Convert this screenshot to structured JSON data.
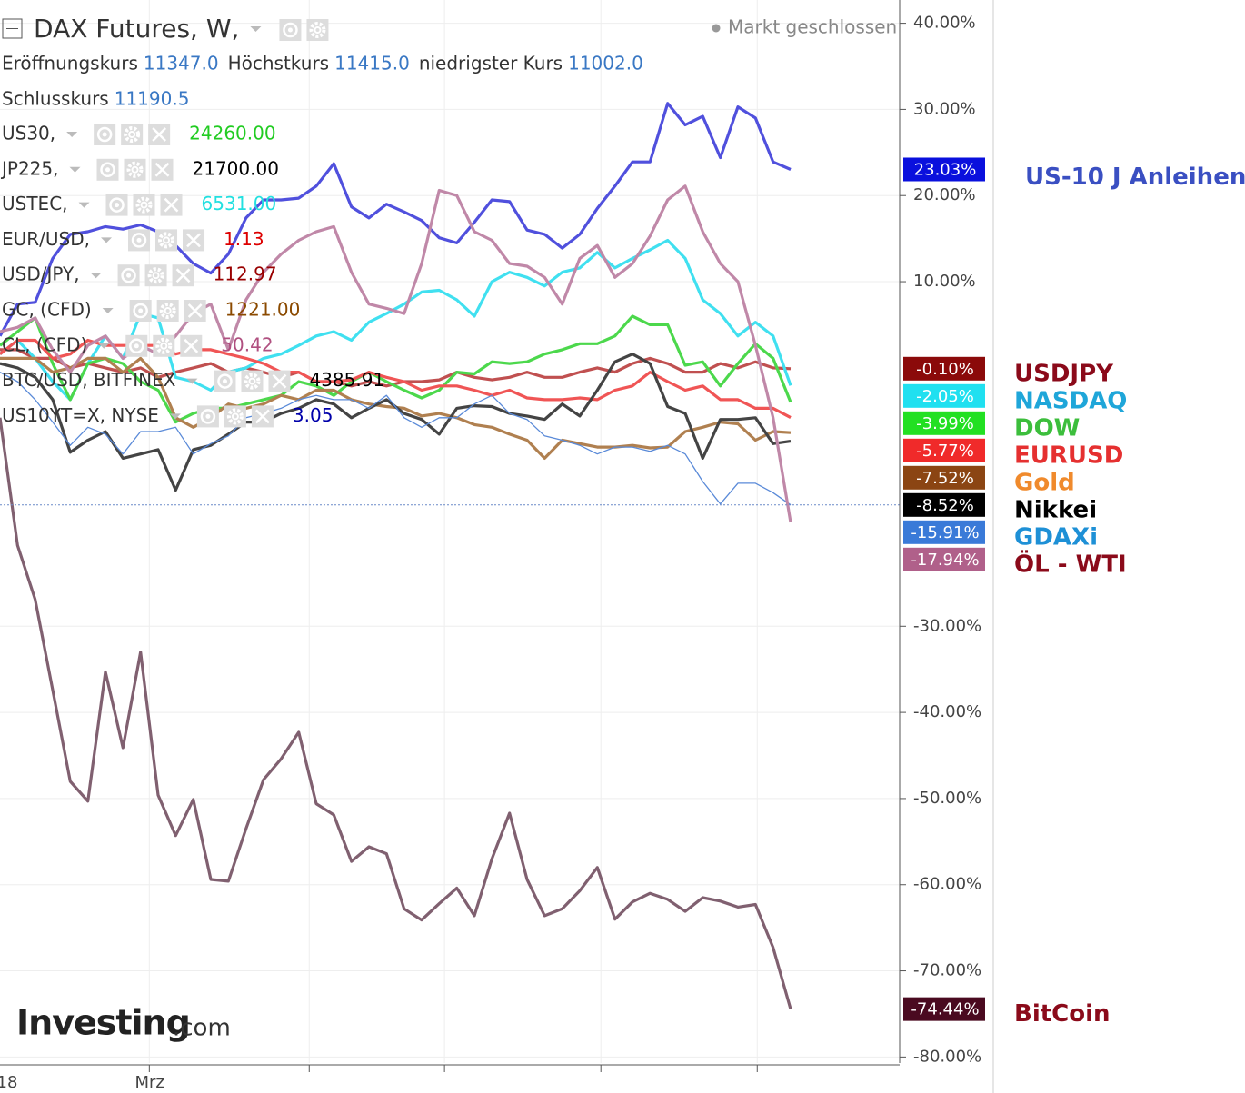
{
  "header": {
    "title": "DAX Futures, W,",
    "status": "Markt geschlossen",
    "ohlc": [
      {
        "label": "Eröffnungskurs",
        "value": "11347.0"
      },
      {
        "label": "Höchstkurs",
        "value": "11415.0"
      },
      {
        "label": "niedrigster Kurs",
        "value": "11002.0"
      },
      {
        "label": "Schlusskurs",
        "value": "11190.5"
      }
    ],
    "symbols": [
      {
        "name": "US30,",
        "value": "24260.00",
        "color": "#22cc22"
      },
      {
        "name": "JP225,",
        "value": "21700.00",
        "color": "#000000"
      },
      {
        "name": "USTEC,",
        "value": "6531.00",
        "color": "#22e0e0"
      },
      {
        "name": "EUR/USD,",
        "value": "1.13",
        "color": "#dd0000"
      },
      {
        "name": "USD/JPY,",
        "value": "112.97",
        "color": "#990000"
      },
      {
        "name": "GC, (CFD)",
        "value": "1221.00",
        "color": "#8b4a00"
      },
      {
        "name": "CL, (CFD)",
        "value": "50.42",
        "color": "#b05080"
      },
      {
        "name": "BTC/USD, BITFINEX",
        "value": "4385.91",
        "color": "#000000"
      },
      {
        "name": "US10YT=X, NYSE",
        "value": "3.05",
        "color": "#0000aa"
      }
    ]
  },
  "watermark": {
    "brand": "Investing",
    "suffix": ".com"
  },
  "chart_data": {
    "type": "line",
    "categories": [
      "18",
      null,
      null,
      null,
      null,
      null,
      null,
      null,
      "Mrz",
      null,
      null,
      null,
      null,
      null,
      null,
      null,
      null,
      null,
      null,
      null,
      null,
      null,
      null,
      null,
      null,
      null,
      null,
      null,
      null,
      null,
      null,
      null,
      null,
      null,
      null,
      null,
      null,
      null,
      null,
      null,
      null,
      null,
      null,
      null,
      null,
      null
    ],
    "ylim": [
      -80.7,
      42.7
    ],
    "yticks": [
      {
        "value": 40,
        "label": "40.00%"
      },
      {
        "value": 30,
        "label": "30.00%"
      },
      {
        "value": 20,
        "label": "20.00%"
      },
      {
        "value": 10,
        "label": "10.00%"
      },
      {
        "value": -30,
        "label": "-30.00%"
      },
      {
        "value": -40,
        "label": "-40.00%"
      },
      {
        "value": -50,
        "label": "-50.00%"
      },
      {
        "value": -60,
        "label": "-60.00%"
      },
      {
        "value": -70,
        "label": "-70.00%"
      },
      {
        "value": -80,
        "label": "-80.00%"
      }
    ],
    "grid": true,
    "series": [
      {
        "name": "US-10 J Anleihen",
        "color": "#5050dd",
        "label_color": "#0a10dd",
        "name_color": "#3a4fc2",
        "values": [
          3.7,
          7.4,
          7.6,
          12.7,
          15.5,
          15.8,
          16.4,
          16.1,
          16.6,
          15.8,
          14.2,
          12.1,
          11.0,
          13.2,
          17.4,
          19.5,
          19.5,
          19.7,
          21.1,
          23.7,
          18.7,
          17.4,
          19.0,
          18.1,
          17.1,
          15.1,
          14.5,
          16.9,
          19.5,
          19.3,
          16.0,
          15.5,
          13.9,
          15.5,
          18.5,
          21.1,
          23.9,
          23.9,
          30.7,
          28.2,
          29.2,
          24.4,
          30.3,
          29.0,
          23.9,
          23.03
        ],
        "value_labels": [
          null,
          null,
          null,
          null,
          null,
          null,
          null,
          null,
          null,
          null,
          null,
          null,
          null,
          null,
          null,
          null,
          null,
          null,
          null,
          null,
          null,
          null,
          null,
          null,
          null,
          null,
          null,
          null,
          null,
          null,
          null,
          null,
          null,
          null,
          null,
          null,
          null,
          null,
          null,
          null,
          null,
          null,
          null,
          null,
          null,
          "23.03%"
        ]
      },
      {
        "name": "USDJPY",
        "color": "#c05050",
        "label_color": "#8b0a0a",
        "name_color": "#8b0a1a",
        "values": [
          2.1,
          2.1,
          1.1,
          1.1,
          0,
          0.5,
          0,
          -0.5,
          0,
          -1.1,
          -0.5,
          0,
          0.5,
          -0.5,
          0,
          -0.5,
          -1.1,
          -0.5,
          -1.6,
          -1.6,
          -2.1,
          -1.6,
          -2.1,
          -1.6,
          -1.6,
          -1.4,
          -0.5,
          -1.1,
          -1.4,
          -1.1,
          -0.5,
          -1.1,
          -1.1,
          -0.5,
          0,
          -0.5,
          0.5,
          1.1,
          0.5,
          -0.5,
          -0.5,
          0.5,
          0,
          0.7,
          0,
          -0.1
        ],
        "value_labels": [
          null,
          null,
          null,
          null,
          null,
          null,
          null,
          null,
          null,
          null,
          null,
          null,
          null,
          null,
          null,
          null,
          null,
          null,
          null,
          null,
          null,
          null,
          null,
          null,
          null,
          null,
          null,
          null,
          null,
          null,
          null,
          null,
          null,
          null,
          null,
          null,
          null,
          null,
          null,
          null,
          null,
          null,
          null,
          null,
          null,
          "-0.10%"
        ]
      },
      {
        "name": "NASDAQ",
        "color": "#40e0f0",
        "label_color": "#20e0f0",
        "name_color": "#1fa6d9",
        "values": [
          1.6,
          3.2,
          1.1,
          -1.6,
          -3.7,
          0.5,
          3.7,
          1.1,
          6.3,
          5.8,
          -1.1,
          -1.6,
          -2.6,
          -0.5,
          0,
          1.1,
          1.6,
          2.6,
          3.7,
          4.2,
          3.2,
          5.3,
          6.3,
          7.4,
          8.8,
          9.0,
          7.9,
          6.0,
          10.0,
          11.1,
          10.5,
          9.5,
          11.1,
          11.6,
          13.4,
          11.6,
          12.7,
          13.7,
          14.8,
          12.7,
          7.9,
          6.3,
          3.7,
          5.3,
          3.7,
          -2.05
        ],
        "value_labels": [
          null,
          null,
          null,
          null,
          null,
          null,
          null,
          null,
          null,
          null,
          null,
          null,
          null,
          null,
          null,
          null,
          null,
          null,
          null,
          null,
          null,
          null,
          null,
          null,
          null,
          null,
          null,
          null,
          null,
          null,
          null,
          null,
          null,
          null,
          null,
          null,
          null,
          null,
          null,
          null,
          null,
          null,
          null,
          null,
          null,
          "-2.05%"
        ]
      },
      {
        "name": "DOW",
        "color": "#4cd84c",
        "label_color": "#22e022",
        "name_color": "#3cbe3c",
        "values": [
          2.6,
          4.2,
          5.8,
          0.5,
          -3.7,
          0.5,
          1.1,
          0.5,
          -1.6,
          -2.6,
          -6.3,
          -5.3,
          -4.7,
          -4.7,
          -4.2,
          -3.7,
          -3.2,
          -1.6,
          -2.1,
          -3.2,
          -1.6,
          -0.5,
          -1.6,
          -2.6,
          -3.5,
          -2.6,
          -0.5,
          -0.7,
          0.7,
          0.5,
          0.7,
          1.6,
          2.1,
          2.8,
          2.8,
          3.7,
          6.0,
          5.0,
          5.0,
          0.3,
          0.7,
          -2.1,
          0.5,
          2.8,
          1.1,
          -3.99
        ],
        "value_labels": [
          null,
          null,
          null,
          null,
          null,
          null,
          null,
          null,
          null,
          null,
          null,
          null,
          null,
          null,
          null,
          null,
          null,
          null,
          null,
          null,
          null,
          null,
          null,
          null,
          null,
          null,
          null,
          null,
          null,
          null,
          null,
          null,
          null,
          null,
          null,
          null,
          null,
          null,
          null,
          null,
          null,
          null,
          null,
          null,
          null,
          "-3.99%"
        ]
      },
      {
        "name": "EURUSD",
        "color": "#f05555",
        "label_color": "#f02a2a",
        "name_color": "#e53030",
        "values": [
          1.6,
          3.2,
          3.2,
          1.1,
          1.6,
          3.2,
          2.6,
          2.6,
          2.6,
          2.6,
          1.6,
          2.1,
          2.1,
          1.6,
          1.1,
          0.5,
          -0.5,
          -0.5,
          -1.6,
          -1.6,
          -1.4,
          -0.5,
          -1.1,
          -1.6,
          -2.6,
          -2.1,
          -2.1,
          -2.6,
          -3.2,
          -2.6,
          -3.5,
          -3.7,
          -3.7,
          -3.5,
          -3.7,
          -2.6,
          -2.1,
          -0.5,
          -1.6,
          -2.6,
          -2.1,
          -3.7,
          -3.7,
          -4.7,
          -4.7,
          -5.77
        ],
        "value_labels": [
          null,
          null,
          null,
          null,
          null,
          null,
          null,
          null,
          null,
          null,
          null,
          null,
          null,
          null,
          null,
          null,
          null,
          null,
          null,
          null,
          null,
          null,
          null,
          null,
          null,
          null,
          null,
          null,
          null,
          null,
          null,
          null,
          null,
          null,
          null,
          null,
          null,
          null,
          null,
          null,
          null,
          null,
          null,
          null,
          null,
          "-5.77%"
        ]
      },
      {
        "name": "Gold",
        "color": "#b08050",
        "label_color": "#8b4513",
        "name_color": "#f08a2c",
        "values": [
          1.1,
          1.1,
          1.1,
          -0.5,
          0,
          1.1,
          1.1,
          -0.5,
          1.1,
          -1.1,
          -5.8,
          -6.9,
          -5.8,
          -4.2,
          -4.7,
          -4.2,
          -3.2,
          -3.7,
          -2.6,
          -2.6,
          -3.7,
          -4.2,
          -4.5,
          -4.7,
          -5.6,
          -5.3,
          -5.8,
          -6.6,
          -6.9,
          -7.7,
          -8.4,
          -10.5,
          -8.4,
          -8.8,
          -9.2,
          -9.2,
          -9.0,
          -9.3,
          -9.2,
          -7.4,
          -6.9,
          -6.3,
          -6.5,
          -8.4,
          -7.4,
          -7.52
        ],
        "value_labels": [
          null,
          null,
          null,
          null,
          null,
          null,
          null,
          null,
          null,
          null,
          null,
          null,
          null,
          null,
          null,
          null,
          null,
          null,
          null,
          null,
          null,
          null,
          null,
          null,
          null,
          null,
          null,
          null,
          null,
          null,
          null,
          null,
          null,
          null,
          null,
          null,
          null,
          null,
          null,
          null,
          null,
          null,
          null,
          null,
          null,
          "-7.52%"
        ]
      },
      {
        "name": "Nikkei",
        "color": "#444444",
        "label_color": "#000000",
        "name_color": "#000000",
        "values": [
          0.5,
          0,
          -1.1,
          -3.7,
          -9.8,
          -8.4,
          -7.4,
          -10.5,
          -10.0,
          -9.5,
          -14.2,
          -9.5,
          -9.0,
          -7.7,
          -6.3,
          -6.3,
          -5.3,
          -4.7,
          -3.7,
          -4.2,
          -5.8,
          -4.7,
          -3.7,
          -5.3,
          -6.0,
          -7.7,
          -4.7,
          -4.4,
          -4.5,
          -5.3,
          -5.6,
          -6.0,
          -4.2,
          -5.6,
          -2.6,
          0.7,
          1.6,
          0.5,
          -4.5,
          -5.3,
          -10.5,
          -6.0,
          -6.0,
          -5.8,
          -8.8,
          -8.52
        ],
        "value_labels": [
          null,
          null,
          null,
          null,
          null,
          null,
          null,
          null,
          null,
          null,
          null,
          null,
          null,
          null,
          null,
          null,
          null,
          null,
          null,
          null,
          null,
          null,
          null,
          null,
          null,
          null,
          null,
          null,
          null,
          null,
          null,
          null,
          null,
          null,
          null,
          null,
          null,
          null,
          null,
          null,
          null,
          null,
          null,
          null,
          null,
          "-8.52%"
        ]
      },
      {
        "name": "GDAXi",
        "color": "#5a8ad8",
        "label_color": "#3a7ad8",
        "name_color": "#1e90d6",
        "values": [
          -0.5,
          -1.6,
          -3.7,
          -6.3,
          -9.0,
          -6.9,
          -7.7,
          -10.0,
          -7.4,
          -7.4,
          -6.9,
          -10.0,
          -8.8,
          -7.9,
          -5.8,
          -5.3,
          -4.7,
          -3.7,
          -3.2,
          -3.7,
          -3.7,
          -4.7,
          -3.2,
          -5.8,
          -6.9,
          -5.8,
          -5.8,
          -4.2,
          -3.2,
          -5.3,
          -6.0,
          -7.9,
          -8.4,
          -9.0,
          -10.0,
          -9.2,
          -9.2,
          -9.7,
          -9.0,
          -10.0,
          -13.2,
          -15.8,
          -13.4,
          -13.4,
          -14.5,
          -15.91
        ],
        "value_labels": [
          null,
          null,
          null,
          null,
          null,
          null,
          null,
          null,
          null,
          null,
          null,
          null,
          null,
          null,
          null,
          null,
          null,
          null,
          null,
          null,
          null,
          null,
          null,
          null,
          null,
          null,
          null,
          null,
          null,
          null,
          null,
          null,
          null,
          null,
          null,
          null,
          null,
          null,
          null,
          null,
          null,
          null,
          null,
          null,
          null,
          "-15.91%"
        ]
      },
      {
        "name": "ÖL - WTI",
        "color": "#c088a8",
        "label_color": "#b0608a",
        "name_color": "#8b0a1a",
        "values": [
          4.2,
          4.7,
          5.8,
          2.1,
          -0.5,
          2.6,
          3.7,
          1.1,
          2.6,
          1.6,
          3.7,
          6.3,
          7.4,
          2.1,
          7.9,
          11.1,
          13.2,
          14.8,
          15.8,
          16.4,
          11.1,
          7.4,
          6.9,
          6.3,
          12.1,
          20.6,
          20.0,
          15.8,
          14.8,
          12.1,
          11.8,
          10.5,
          7.4,
          12.7,
          14.2,
          10.5,
          12.1,
          15.3,
          19.5,
          21.1,
          15.8,
          12.1,
          10.0,
          2.6,
          -5.8,
          -17.94
        ],
        "value_labels": [
          null,
          null,
          null,
          null,
          null,
          null,
          null,
          null,
          null,
          null,
          null,
          null,
          null,
          null,
          null,
          null,
          null,
          null,
          null,
          null,
          null,
          null,
          null,
          null,
          null,
          null,
          null,
          null,
          null,
          null,
          null,
          null,
          null,
          null,
          null,
          null,
          null,
          null,
          null,
          null,
          null,
          null,
          null,
          null,
          null,
          "-17.94%"
        ]
      },
      {
        "name": "BitCoin",
        "color": "#806070",
        "label_color": "#4a0a20",
        "name_color": "#8b0a1a",
        "values": [
          -5.8,
          -20.6,
          -26.9,
          -37.4,
          -48.0,
          -50.3,
          -35.3,
          -44.1,
          -33.0,
          -49.6,
          -54.3,
          -50.1,
          -59.4,
          -59.6,
          -53.5,
          -47.8,
          -45.4,
          -42.3,
          -50.6,
          -51.9,
          -57.3,
          -55.6,
          -56.4,
          -62.8,
          -64.1,
          -62.2,
          -60.4,
          -63.6,
          -57.0,
          -51.7,
          -59.4,
          -63.6,
          -62.8,
          -60.7,
          -58.0,
          -64.0,
          -62.0,
          -61.0,
          -61.7,
          -63.1,
          -61.5,
          -61.9,
          -62.6,
          -62.3,
          -67.3,
          -74.44
        ],
        "value_labels": [
          null,
          null,
          null,
          null,
          null,
          null,
          null,
          null,
          null,
          null,
          null,
          null,
          null,
          null,
          null,
          null,
          null,
          null,
          null,
          null,
          null,
          null,
          null,
          null,
          null,
          null,
          null,
          null,
          null,
          null,
          null,
          null,
          null,
          null,
          null,
          null,
          null,
          null,
          null,
          null,
          null,
          null,
          null,
          null,
          null,
          "-74.44%"
        ]
      }
    ]
  }
}
